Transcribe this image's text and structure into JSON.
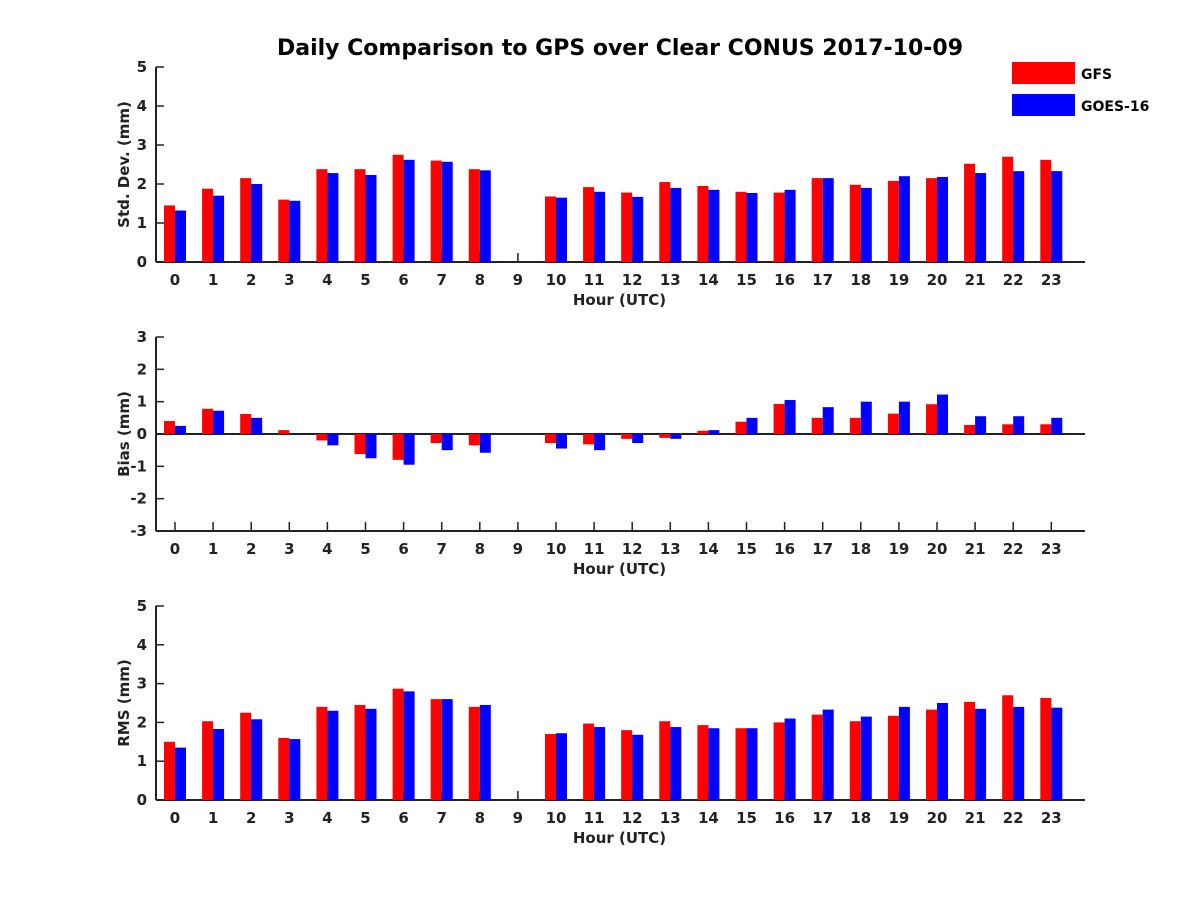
{
  "title": "Daily Comparison to GPS over Clear CONUS 2017-10-09",
  "legend": [
    {
      "label": "GFS",
      "color": "#ff0000"
    },
    {
      "label": "GOES-16",
      "color": "#0000ff"
    }
  ],
  "chart_data": [
    {
      "type": "bar",
      "xlabel": "Hour (UTC)",
      "ylabel": "Std. Dev. (mm)",
      "ylim": [
        0,
        5
      ],
      "yticks": [
        0,
        1,
        2,
        3,
        4,
        5
      ],
      "categories": [
        "0",
        "1",
        "2",
        "3",
        "4",
        "5",
        "6",
        "7",
        "8",
        "9",
        "10",
        "11",
        "12",
        "13",
        "14",
        "15",
        "16",
        "17",
        "18",
        "19",
        "20",
        "21",
        "22",
        "23"
      ],
      "series": [
        {
          "name": "GFS",
          "values": [
            1.45,
            1.88,
            2.15,
            1.6,
            2.38,
            2.38,
            2.75,
            2.6,
            2.38,
            null,
            1.68,
            1.92,
            1.78,
            2.05,
            1.95,
            1.8,
            1.78,
            2.15,
            1.98,
            2.08,
            2.15,
            2.52,
            2.7,
            2.62
          ]
        },
        {
          "name": "GOES-16",
          "values": [
            1.32,
            1.7,
            2.0,
            1.57,
            2.28,
            2.23,
            2.62,
            2.57,
            2.35,
            null,
            1.65,
            1.8,
            1.67,
            1.9,
            1.85,
            1.77,
            1.85,
            2.15,
            1.9,
            2.2,
            2.18,
            2.28,
            2.33,
            2.33
          ]
        }
      ]
    },
    {
      "type": "bar",
      "xlabel": "Hour (UTC)",
      "ylabel": "Bias (mm)",
      "ylim": [
        -3,
        3
      ],
      "yticks": [
        -3,
        -2,
        -1,
        0,
        1,
        2,
        3
      ],
      "categories": [
        "0",
        "1",
        "2",
        "3",
        "4",
        "5",
        "6",
        "7",
        "8",
        "9",
        "10",
        "11",
        "12",
        "13",
        "14",
        "15",
        "16",
        "17",
        "18",
        "19",
        "20",
        "21",
        "22",
        "23"
      ],
      "series": [
        {
          "name": "GFS",
          "values": [
            0.4,
            0.78,
            0.62,
            0.12,
            -0.2,
            -0.62,
            -0.8,
            -0.28,
            -0.35,
            null,
            -0.28,
            -0.32,
            -0.15,
            -0.12,
            0.1,
            0.38,
            0.93,
            0.5,
            0.5,
            0.63,
            0.92,
            0.28,
            0.3,
            0.3
          ]
        },
        {
          "name": "GOES-16",
          "values": [
            0.25,
            0.72,
            0.5,
            0.0,
            -0.35,
            -0.75,
            -0.95,
            -0.5,
            -0.58,
            null,
            -0.45,
            -0.5,
            -0.28,
            -0.15,
            0.12,
            0.5,
            1.05,
            0.83,
            1.0,
            1.0,
            1.22,
            0.55,
            0.55,
            0.5
          ]
        }
      ]
    },
    {
      "type": "bar",
      "xlabel": "Hour (UTC)",
      "ylabel": "RMS (mm)",
      "ylim": [
        0,
        5
      ],
      "yticks": [
        0,
        1,
        2,
        3,
        4,
        5
      ],
      "categories": [
        "0",
        "1",
        "2",
        "3",
        "4",
        "5",
        "6",
        "7",
        "8",
        "9",
        "10",
        "11",
        "12",
        "13",
        "14",
        "15",
        "16",
        "17",
        "18",
        "19",
        "20",
        "21",
        "22",
        "23"
      ],
      "series": [
        {
          "name": "GFS",
          "values": [
            1.5,
            2.03,
            2.25,
            1.6,
            2.4,
            2.45,
            2.87,
            2.6,
            2.4,
            null,
            1.7,
            1.97,
            1.8,
            2.03,
            1.93,
            1.85,
            2.0,
            2.2,
            2.03,
            2.17,
            2.33,
            2.53,
            2.7,
            2.63
          ]
        },
        {
          "name": "GOES-16",
          "values": [
            1.35,
            1.83,
            2.08,
            1.57,
            2.3,
            2.35,
            2.8,
            2.6,
            2.45,
            null,
            1.72,
            1.88,
            1.68,
            1.88,
            1.85,
            1.85,
            2.1,
            2.33,
            2.15,
            2.4,
            2.5,
            2.35,
            2.4,
            2.38
          ]
        }
      ]
    }
  ]
}
